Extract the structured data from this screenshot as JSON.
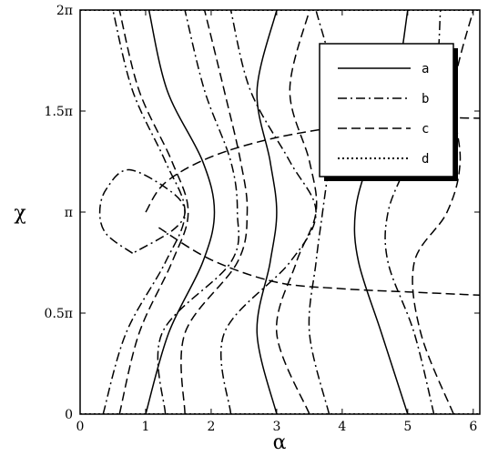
{
  "chart_data": {
    "type": "line",
    "title": "",
    "xlabel": "α",
    "ylabel": "χ",
    "xlim": [
      0,
      6.1
    ],
    "ylim": [
      0,
      6.2832
    ],
    "x_ticks": [
      {
        "value": 0,
        "label": "0"
      },
      {
        "value": 1,
        "label": "1"
      },
      {
        "value": 2,
        "label": "2"
      },
      {
        "value": 3,
        "label": "3"
      },
      {
        "value": 4,
        "label": "4"
      },
      {
        "value": 5,
        "label": "5"
      },
      {
        "value": 6,
        "label": "6"
      }
    ],
    "y_ticks": [
      {
        "value": 0,
        "label": "0"
      },
      {
        "value": 1.5708,
        "label": "0.5π"
      },
      {
        "value": 3.1416,
        "label": "π"
      },
      {
        "value": 4.7124,
        "label": "1.5π"
      },
      {
        "value": 6.2832,
        "label": "2π"
      }
    ],
    "legend": {
      "position": "top-right",
      "entries": [
        {
          "label": "a",
          "style": "solid"
        },
        {
          "label": "b",
          "style": "dashdot"
        },
        {
          "label": "c",
          "style": "dashed"
        },
        {
          "label": "d",
          "style": "dotted"
        }
      ]
    },
    "series": [
      {
        "name": "a",
        "style": "solid",
        "values_note": "contours",
        "curves": [
          [
            [
              1.0,
              0
            ],
            [
              1.35,
              1.26
            ],
            [
              1.87,
              2.36
            ],
            [
              2.05,
              3.14
            ],
            [
              1.87,
              3.93
            ],
            [
              1.33,
              5.03
            ],
            [
              1.05,
              6.28
            ]
          ],
          [
            [
              3.0,
              0
            ],
            [
              2.7,
              1.26
            ],
            [
              2.9,
              2.36
            ],
            [
              3.0,
              3.14
            ],
            [
              2.9,
              3.93
            ],
            [
              2.7,
              5.03
            ],
            [
              3.0,
              6.28
            ]
          ],
          [
            [
              5.0,
              0
            ],
            [
              4.6,
              1.26
            ],
            [
              4.25,
              2.36
            ],
            [
              4.2,
              3.14
            ],
            [
              4.4,
              3.93
            ],
            [
              4.8,
              5.03
            ],
            [
              5.0,
              6.28
            ]
          ]
        ]
      },
      {
        "name": "b",
        "style": "dashdot",
        "curves": [
          [
            [
              0.35,
              0
            ],
            [
              0.7,
              1.26
            ],
            [
              1.3,
              2.36
            ],
            [
              1.6,
              3.14
            ],
            [
              1.3,
              3.93
            ],
            [
              0.8,
              5.03
            ],
            [
              0.5,
              6.28
            ]
          ],
          [
            [
              1.3,
              0
            ],
            [
              1.25,
              1.26
            ],
            [
              2.3,
              2.36
            ],
            [
              2.4,
              3.14
            ],
            [
              2.3,
              3.93
            ],
            [
              1.9,
              5.03
            ],
            [
              1.6,
              6.28
            ]
          ],
          [
            [
              2.3,
              0
            ],
            [
              2.2,
              1.26
            ],
            [
              3.2,
              2.36
            ],
            [
              3.6,
              3.14
            ],
            [
              3.2,
              3.93
            ],
            [
              2.6,
              5.03
            ],
            [
              2.3,
              6.28
            ]
          ],
          [
            [
              3.8,
              0
            ],
            [
              3.5,
              1.26
            ],
            [
              3.6,
              2.36
            ],
            [
              3.7,
              3.14
            ],
            [
              3.8,
              3.93
            ],
            [
              3.9,
              5.03
            ],
            [
              3.6,
              6.28
            ]
          ],
          [
            [
              5.4,
              0
            ],
            [
              5.1,
              1.26
            ],
            [
              4.7,
              2.36
            ],
            [
              4.7,
              3.14
            ],
            [
              5.0,
              3.93
            ],
            [
              5.4,
              5.03
            ],
            [
              5.5,
              6.28
            ]
          ],
          [
            [
              0.8,
              2.5
            ],
            [
              0.4,
              2.8
            ],
            [
              0.3,
              3.14
            ],
            [
              0.4,
              3.5
            ],
            [
              0.75,
              3.8
            ],
            [
              1.4,
              3.45
            ],
            [
              1.6,
              3.14
            ],
            [
              1.4,
              2.85
            ],
            [
              0.8,
              2.5
            ]
          ]
        ]
      },
      {
        "name": "c",
        "style": "dashed",
        "curves": [
          [
            [
              0.6,
              0
            ],
            [
              0.9,
              1.26
            ],
            [
              1.4,
              2.36
            ],
            [
              1.65,
              3.14
            ],
            [
              1.4,
              3.93
            ],
            [
              0.9,
              5.03
            ],
            [
              0.6,
              6.28
            ]
          ],
          [
            [
              1.0,
              3.14
            ],
            [
              1.3,
              3.6
            ],
            [
              2.0,
              4.0
            ],
            [
              3.0,
              4.3
            ],
            [
              4.2,
              4.5
            ],
            [
              5.3,
              4.6
            ],
            [
              6.1,
              4.6
            ]
          ],
          [
            [
              1.2,
              2.9
            ],
            [
              2.0,
              2.4
            ],
            [
              3.0,
              2.05
            ],
            [
              4.0,
              1.95
            ],
            [
              5.0,
              1.9
            ],
            [
              6.1,
              1.85
            ]
          ],
          [
            [
              1.6,
              0
            ],
            [
              1.6,
              1.26
            ],
            [
              2.4,
              2.36
            ],
            [
              2.55,
              3.14
            ],
            [
              2.45,
              3.93
            ],
            [
              2.2,
              5.03
            ],
            [
              1.9,
              6.28
            ]
          ],
          [
            [
              3.5,
              0
            ],
            [
              3.0,
              1.26
            ],
            [
              3.3,
              2.36
            ],
            [
              3.6,
              3.14
            ],
            [
              3.5,
              3.93
            ],
            [
              3.2,
              5.03
            ],
            [
              3.5,
              6.28
            ]
          ],
          [
            [
              5.7,
              0
            ],
            [
              5.2,
              1.26
            ],
            [
              5.1,
              2.36
            ],
            [
              5.6,
              3.14
            ],
            [
              5.8,
              3.93
            ],
            [
              5.7,
              5.03
            ],
            [
              6.0,
              6.28
            ]
          ]
        ]
      },
      {
        "name": "d",
        "style": "dotted",
        "curves": [
          [
            [
              0,
              0
            ],
            [
              6.1,
              0
            ]
          ],
          [
            [
              0,
              6.2832
            ],
            [
              6.1,
              6.2832
            ]
          ]
        ]
      }
    ]
  }
}
